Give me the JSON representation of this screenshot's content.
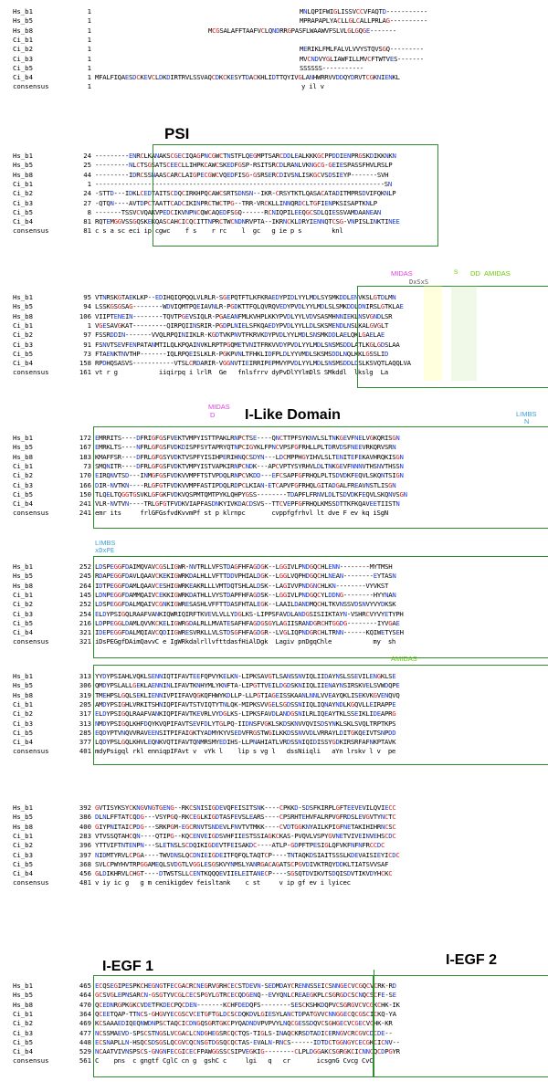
{
  "alignment": {
    "names": [
      "Hs_b1",
      "Hs_b5",
      "Hs_b8",
      "Ci_b1",
      "Ci_b2",
      "Ci_b3",
      "Ci_b5",
      "Ci_b4",
      "consensus"
    ],
    "blocks": [
      {
        "positions": [
          "1",
          "1",
          "1",
          "1",
          "1",
          "1",
          "1",
          "1",
          "1"
        ],
        "sequences": [
          "MNLQPIFWIGLISSVCCVFAQTD-----------",
          "MPRAPAPLYACLLGLCALLPRLAG----------",
          "MCGSALAFFTAAFVCLQNDRRGPASFLWAAWVFSLVLGLGQGE-------",
          "",
          "MERIKLFMLFALVLVVYSTQVSGQ---------",
          "MVCNDVYGLIAWFILLMVCFTWTVES-------",
          "SSSSSS-----------",
          "MFALFIQAESDCKEVCLDKDIRTRVLSSVAQCDKCKESYTDACKHLIDTTQYIVGLANHWRRVVDDQYDRVTCGKNIENKL",
          "y il v"
        ]
      },
      {
        "positions": [
          "24",
          "25",
          "44",
          "1",
          "24",
          "27",
          "8",
          "81",
          "81"
        ],
        "sequences": [
          "---------ENRCLKANAKSCGECIQAGPNCGWCTNSTFLQEGMPTSARCDDLEALKKKGCPPDDIENPRGSKDIKKNKN",
          "---------NLCTSGSATSCEECLLIHPKCAWCSKEDFGSP-RSITSRCDLRANLVKNGCG-GEIESPASSFHVLRSLP",
          "---------IDRCSSNAASCARCLAIGPECGWCVQEDFISG-GSRSERCDIVSNLISKGCVSDSIEYP-------SVH",
          "-----------------------------------------------------------------------------SN",
          "-STTD---IDKLCEDTAITSCDQCIRKHPQCAWCSRTSDNSN--IKR-CRSYTKTLQASACATADITMPRSDVIFQKNLP",
          "-QTQN----AVTDPCTAATTCADCIKINPRCTWCTPG--TRR-VRCKLLINNQRDCLTGFIENPKSISAPTKNLP",
          "-------TSSVCVQAKVPEDCIKVNPNCQWCAQEDFSGQ------RCNIQPILEEQGCSDLQIESSVAMDAANEAN",
          "RQTEMGGVSSGQSKEKQASCAHCICQCITTNPRCTWCNDNRVPTA--IKRNCKLDRYIENNQTCSG-VNPISLINKTINEE",
          "c s a sc eci ip cgwc    f s    r rc    l  gc   g ie p s        knl"
        ]
      },
      {
        "positions": [
          "95",
          "94",
          "106",
          "1",
          "97",
          "91",
          "73",
          "158",
          "161"
        ],
        "sequences": [
          "VTNRSKGTAEKLKP--EDIHQIQPQQLVLRLR-SGEPQTFTLKFKRAEDYPIDLYYLMDLSYSMKDDLENVKSLGTDLMN",
          "LSSKGSGSAG--------WDVIQMTPQEIAVNLR-PGDKTTFQLQVRQVEDYPVDLYYLMDLSLSMKDDLDNIRSLGTKLAE",
          "VIIPTENEIN--------TQVTPGEVSIQLR-PGAEANFMLKVHPLKKYPVDLYYLVDVSASMHNNIEKLNSVGNDLSR",
          "VGESAVGKAT---------QIRPQIINSRIR-PGDPLNIELSFKQAEDYPVDLYYLLDLSKSMENDLNSLKALGVGLT",
          "FSSRDDIN-------VVQLRPQINIIKLR-KGDTVKPNVTFKRVKDYPVDLYYLMDLSNSMKDDLAELQKLGAELAE",
          "FSNVTSEVFENPATANMTILQLKPQAINVKLRPTPGQMETVNITFRKVVDYPVDLYYLMDLSNSMSDDLATLKGLGDSLAA",
          "FTAENKTNVTHP-------IQLRPQEISLKLR-PGKPVNLTFHKLIDFPLDLYYVMDLSKSMSDDLNQLKKLGSSLID",
          "RPDHQSASVS-----------VTSLCRDARIR-VGGNVTIEIRRIPEPMVYPVDLYYLMDLSNSMSDDLDSLKSVQTLAQQLVA",
          "vt r g           iiqirpq i lrlR  Ge   fnlsfrrv dyPvDlYYlmDlS SMkddl  lkslg  La"
        ]
      },
      {
        "positions": [
          "172",
          "167",
          "183",
          "73",
          "170",
          "166",
          "150",
          "241",
          "241"
        ],
        "sequences": [
          "EMRRITS----DFRIGFGSFVEKTVMPYISTTPAKLRNPCTSE----QNCTTPFSYKNVLSLTNKGEVFNELVGKQRISGN",
          "EMRKLTS----NFRLGFGSFVDKDISPFSYTAPRYQTNPCIGYKLFPNCVPSFGFRHLLPLTDRVDSFNEEVRKQRVSRN",
          "KMAFFSR----DFRLGFGSYVDKTVSPFYISIHPERIHNQCSDYN---LDCMPPHGYIHVLSLTENITEFEKAVHRQKISGN",
          "SMQNITR----DFRLGFGSFVDKTVMPYISTVAPKIRNPCNDK---APCVPTYSYRHVLDLTNKGEVFNNNVTHSNVTHSSN",
          "EIRQNVTSD---INMGFGSFVDKVVMPFTSTVPDQLRNPCVKDD---EFCSAPFGFRHQLPLTSDVDKFEQVLSKQNTSIGN",
          "DIR-NVTKN----RLGFGTFVDKVVMPFASTIPDQLRDPCLKIAN-ETCAPVFGFRHQLGITADGALFREAVNSTLISGN",
          "TLQELTQGGTGSVKLGFGKFVDKVQSPMTQMTPYKLQHPYGSS--------TDAPFLFRNVLDLTSDVDKFEQVLSKQNVSGN",
          "VLR-NVTVN----TRLGFGTFVDKVIAPFASDNKYIVKDACDSVS--TTCVEPFGFRHQLKMSSDTTKFKQAVEETIISTN",
          "emr its     frlGFGsfvdKvvmPf st p klrnpc       cvppfgfrhvl lt dve F ev kq iSgN"
        ]
      },
      {
        "positions": [
          "252",
          "245",
          "264",
          "145",
          "252",
          "254",
          "216",
          "321",
          "321"
        ],
        "sequences": [
          "LDSPEGGFDAIMQVAVCGSLIGWR-NVTRLLVFSTDAGFHFAGDGK--LGGIVLPNDGQCHLENN--------MYTMSH",
          "RDAPEGGFDAVLQAAVCKEKIGWRKDALHLLVFTTDDVPHIALDGK--LGGLVQPHDGQCHLNEAN--------EYTASN",
          "IDTPEGGFDAMLQAAVCESHIGWRKEAKRLLLVMTDQTSHLALDSK--LAGIVVPNDGNCHLKN--------VYVKST",
          "LDNPEGGFDAMMQAIVCEKKIGWRKDATHLLVYSTDAPFHFAGDSK--LGGIVLPNDGQCYLDDNG--------HYYNAN",
          "LDSPEGGFDALMQAIVCGNKIGWRESASHLVFFTTDASFHTALEGK--LAAILDANDMQCHLTKVNSSVDSNVYVYDKSK",
          "ELDYPSIGQLRAAFVANKIQWRIQIRFTKVEVLVLLYDGLKS-LIPPSFAVDLANDGSISIIKTAYN-VSHRCVYVYETYPH",
          "LDPPEGGLDAMLQVVKCKELIGWRGDALRLLMVATESAFHFAGDGSGYLAGIISRANDGRCHTGGDG--------IYVGAE",
          "IDEPEGGFDALMQIAVCQDIIGWRESVRKLLVLSTDSGFHFAGDGR--LVGLIQPNDGRCHLTRNN------KQIWETYSEH",
          "iDsPEGgfDAimQavvC e IgWRkdalrllvfttdasfHiAlDgk  Lagiv pnDgqChle           my  sh"
        ]
      },
      {
        "positions": [
          "313",
          "306",
          "319",
          "205",
          "317",
          "313",
          "285",
          "377",
          "401"
        ],
        "sequences": [
          "YYDYPSIAHLVQKLSENNIQTIFAVTEEFQPVYKELKN-LIPKSAVGTLSANSSNVIQLIIDAYNSLSSEVILENGKLSE",
          "QMDYPSLALLGEKLAENNINLIFAVTKNHYMLYKNFTA-LIPGTTVEILDGDSKNIIQLIIENAYNSIRSKVELSVWDQPE",
          "TMEHPSLGQLSEKLIENNIVPIIFAVQGKQFHWYKDLLP-LLPGTIAGEISSKAANLNNLVVEAYQKLISEKVKGVENQVQ",
          "AMDYPSIGHLVRKITSHNIQPIFAVTSTVIQTYTNLQK-MIPKSVVGELSGDSSNIIQLIQNAYNDLKGQVLLEIRAPPE",
          "ELDYPSIGQLRAAFVANKIQPIFAVTKEVRLVYDGLKS-LIPKSFAVDLANDGSNILRLIQEAYTKLSSEIKLIDEAPRG",
          "NMDYPSIGQLKHFDQYKVQPIFAVTSEVFDLYTGLPQ-IIDNSFVGKLSKDSKNVVQVISDSYNKLSKLSVQLTRPTKPS",
          "EQDYPTVNQVVRAVEENSITPIFAIGKTYADMYKYVSEDVFRGSTWGILKKDSSNVVDLVRRAYLDITGKQEIVTSNPDD",
          "LQDYPSLGQLKHVLEQNKVQTIFAVTQNMRSMYEDIHS-LLPNAHIATLVRDSSNIQIDISSYGDKIRSRFAFNKPTAVK",
          "mdyPsigql rkl enniqpIFAvt v  vYk l    lip s vg l   dssNiiqli   aYn lrskv l v  pe"
        ]
      },
      {
        "positions": [
          "392",
          "386",
          "400",
          "283",
          "396",
          "397",
          "368",
          "456",
          "481"
        ],
        "sequences": [
          "GVTISYKSYCKNGVNGTGENG--RKCSNISIGDEVQFEISITSNK----CPKKD-SDSFKIRPLGFTEEVEVILQVIECC",
          "DLNLFFTATCQDG---VSYPGQ-RKCEGLKIGDTASFEVSLEARS----CPSRHTEHVFALRPVGFRDSLEVGVTYNCTC",
          "GIYPNITAICPDG---SRKPGM-EGCRNVTSNDEVLFNVTVTMKK----CVDTGGKNYAILKPIGFNETAKIHIHRNCSC",
          "VTVSSQTAHCQN----QTIPG--KQCENVEIGDSVHFIIESTSSIAGKCKAS-PVQVLVSPYGVNETVIVEINVEHSCDC",
          "YTTVIFTNTENPN---SLETNSLSCDQIKIGDEVTFEISAKDC----ATLP-GDPFTPESIGLQFVKFNFNFRCCDC",
          "NIDMTYRVLCPGA----TWVDNSLQCDNIEIGDEITFQFQLTAQTCP----TNTAQKDSIAITSSSLKDEVAISIEYICDC",
          "SVLCPWYHVTRPGGAMEQLSVDGTLVGGLESGSKVYNMSLYANRGACAGATSCPGVDIVKTRQYDDKLTIATSVVSAF",
          "GLDIKHRVLCHGT----DTWSTSLLCENTKQQQEVIIELEITANECP----SGSQTDVIKVTSDQISDVTIKVDYHCKC",
          "v iy ic g   g m cenikigdev feisltank    c st     v ip gf ev i lyicec"
        ]
      },
      {
        "positions": [
          "465",
          "464",
          "470",
          "364",
          "469",
          "477",
          "448",
          "529",
          "561"
        ],
        "sequences": [
          "ECQSEGIPESPKCHEGNGTFECGACRCNEGRVGRHCECSTDEVN-SEDMDAYCRENNSSEICSNNGECVCGQCVCRK-RD",
          "GCSVGLEPNSARCN-GSGTYVCGLCECSPGYLGTRCECQDGENQ--EVYQNLCREAEGKPLCSGRGDCSCNQCSCFE-SE",
          "QCEDNRGPKGKCVDETFKDECPQCDEN-------KCHFDEDQFS--------SESCKSHKDQPVCSGRGVCVCGKCHK-IK",
          "QCEETQAP-TTNCS-GHGVYECGSCVCETGFTGLDCSCDQKDVLGIESYLANCTDPATGVVCNNGGECQCGSCICKQ-YA",
          "KCSAAAEDIQEQNWDNPSCTAQCICDNGQSGRTGKCPYQADNDVPVPVYLNQCGESSDQVCSGHGECVCGECVCHK-KR",
          "NCSSMAEVD-SPSCSTNGSLVCGACLCNDGHEGSRCQCTQS-TIGLS-INAQCKRSDTADICERNGVCRCGVCDCDE--",
          "ECSNAPLLN-HSQCSDSGSLQCGVCQCNSGTDGSQCQCTAS-EVALN-RNCS------IDTDCTGGNGYCECGKCICNV--",
          "NCAATVIVNSPSCS-GNGNFECGICECFPAWGGSSCSIPVEGKIG--------CLPLDGGAKCSGRGKCICNNCQCDPGYR",
          "C    pns  c gngtf CglC cn g  gshC c     lgi   q   cr       icsgnG Cvcg CvC"
        ]
      }
    ]
  },
  "labels": {
    "psi": "PSI",
    "ilike": "I-Like Domain",
    "iegf1": "I-EGF 1",
    "iegf2": "I-EGF 2",
    "midas": "MIDAS",
    "midas_d": "D",
    "dxsxs": "DxSxS",
    "s_mark": "S",
    "dd_mark": "DD",
    "amidas": "AMIDAS",
    "amidas2": "AMIDAS",
    "limbs": "LIMBS",
    "limbs_n": "N",
    "limbs2": "LIMBS",
    "xdxpe": "xDxPE"
  },
  "colors": {
    "domain_box": "#2e8b2e",
    "midas": "#e040e0",
    "amidas": "#66cc00",
    "limbs": "#3aa0d8"
  }
}
